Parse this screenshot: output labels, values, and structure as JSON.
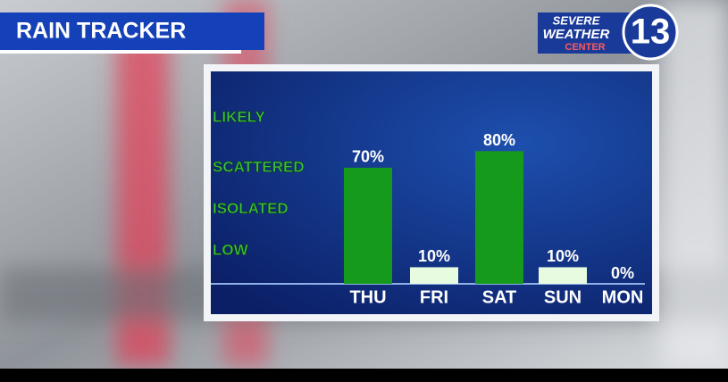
{
  "chart_data": {
    "type": "bar",
    "title": "RAIN TRACKER",
    "categories": [
      "THU",
      "FRI",
      "SAT",
      "SUN",
      "MON"
    ],
    "values": [
      70,
      10,
      80,
      10,
      0
    ],
    "value_labels": [
      "70%",
      "10%",
      "80%",
      "10%",
      "0%"
    ],
    "colors": [
      "#169a1c",
      "#e6fbe0",
      "#169a1c",
      "#e6fbe0",
      "#e6fbe0"
    ],
    "ylim": [
      0,
      120
    ],
    "yticks": [
      {
        "value": 20,
        "label": "LOW"
      },
      {
        "value": 45,
        "label": "ISOLATED"
      },
      {
        "value": 70,
        "label": "SCATTERED"
      },
      {
        "value": 100,
        "label": "LIKELY"
      }
    ],
    "tick_color": "#3cc43c"
  },
  "logo": {
    "line1": "SEVERE",
    "line2": "WEATHER",
    "line3": "CENTER",
    "number": "13"
  }
}
